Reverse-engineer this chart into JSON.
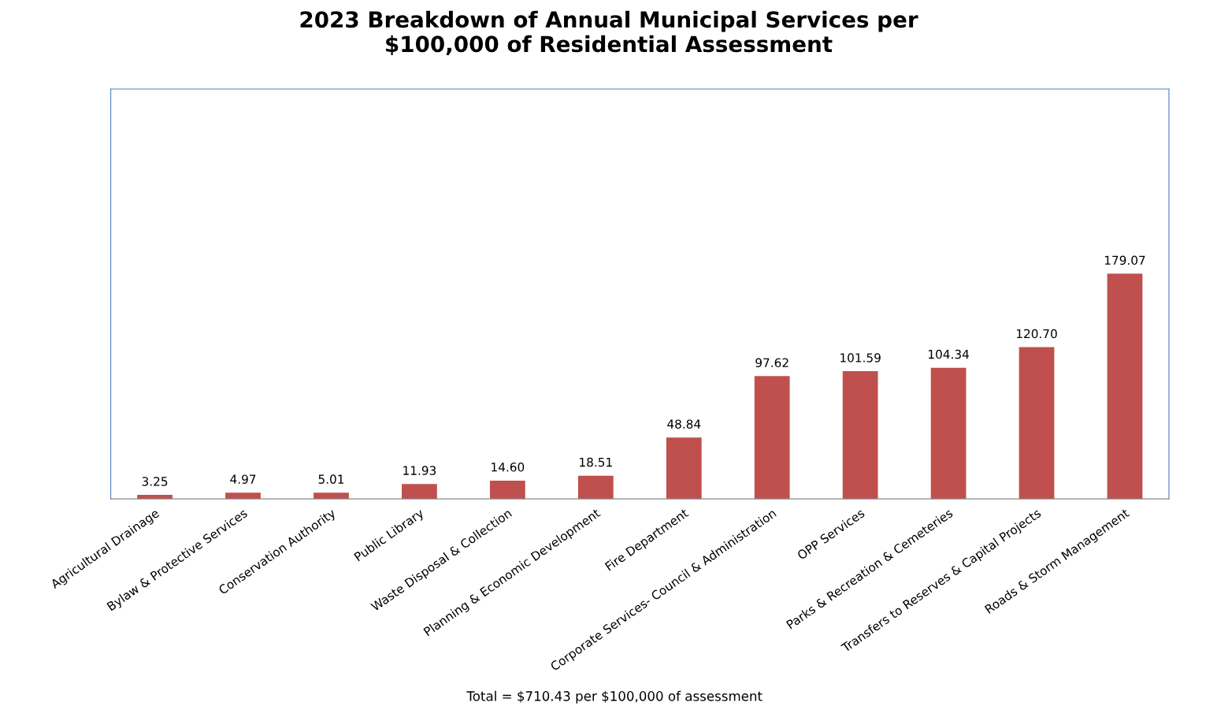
{
  "chart_data": {
    "type": "bar",
    "title": "2023 Breakdown of Annual Municipal Services per\n$100,000 of Residential Assessment",
    "categories": [
      "Agricultural Drainage",
      "Bylaw & Protective Services",
      "Conservation Authority",
      "Public Library",
      "Waste Disposal & Collection",
      "Planning & Economic Development",
      "Fire Department",
      "Corporate Services- Council & Administration",
      "OPP Services",
      "Parks & Recreation & Cemeteries",
      "Transfers to Reserves & Capital Projects",
      "Roads & Storm Management"
    ],
    "values": [
      3.25,
      4.97,
      5.01,
      11.93,
      14.6,
      18.51,
      48.84,
      97.62,
      101.59,
      104.34,
      120.7,
      179.07
    ],
    "value_labels": [
      "3.25",
      "4.97",
      "5.01",
      "11.93",
      "14.60",
      "18.51",
      "48.84",
      "97.62",
      "101.59",
      "104.34",
      "120.70",
      "179.07"
    ],
    "color": "#c0504d",
    "annotations": [
      "Total = $710.43 per $100,000 of assessment"
    ],
    "tick_labels": "x",
    "grid": false,
    "legend": false
  }
}
